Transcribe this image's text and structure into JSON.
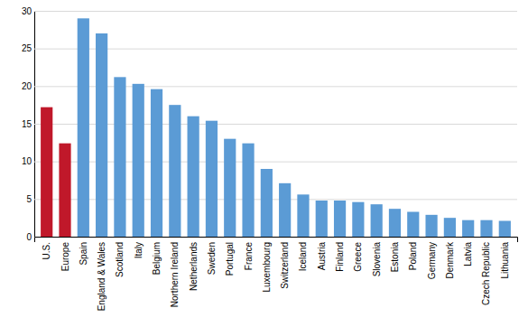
{
  "chart_data": {
    "type": "bar",
    "categories": [
      "U.S.",
      "Europe",
      "Spain",
      "England & Wales",
      "Scotland",
      "Italy",
      "Belgium",
      "Northern Ireland",
      "Netherlands",
      "Sweden",
      "Portugal",
      "France",
      "Luxembourg",
      "Switzerland",
      "Iceland",
      "Austria",
      "Finland",
      "Greece",
      "Slovenia",
      "Estonia",
      "Poland",
      "Germany",
      "Denmark",
      "Latvia",
      "Czech Republic",
      "Lithuania"
    ],
    "values": [
      17.2,
      12.4,
      29.0,
      27.0,
      21.2,
      20.3,
      19.6,
      17.5,
      16.0,
      15.4,
      13.0,
      12.4,
      9.0,
      7.1,
      5.6,
      4.8,
      4.8,
      4.6,
      4.3,
      3.7,
      3.3,
      2.9,
      2.5,
      2.2,
      2.2,
      2.1
    ],
    "colors": [
      "#c0182a",
      "#c0182a",
      "#5b9bd5",
      "#5b9bd5",
      "#5b9bd5",
      "#5b9bd5",
      "#5b9bd5",
      "#5b9bd5",
      "#5b9bd5",
      "#5b9bd5",
      "#5b9bd5",
      "#5b9bd5",
      "#5b9bd5",
      "#5b9bd5",
      "#5b9bd5",
      "#5b9bd5",
      "#5b9bd5",
      "#5b9bd5",
      "#5b9bd5",
      "#5b9bd5",
      "#5b9bd5",
      "#5b9bd5",
      "#5b9bd5",
      "#5b9bd5",
      "#5b9bd5",
      "#5b9bd5"
    ],
    "ylim": [
      0,
      30
    ],
    "yticks": [
      0,
      5,
      10,
      15,
      20,
      25,
      30
    ],
    "grid": true
  }
}
